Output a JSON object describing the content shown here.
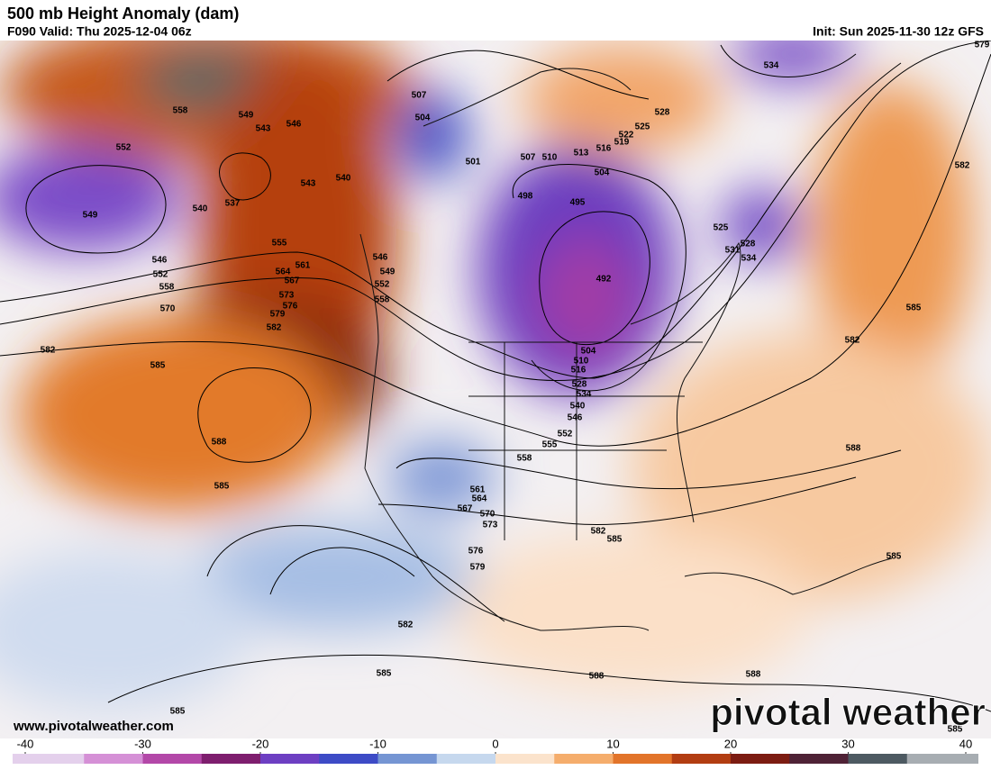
{
  "header": {
    "title": "500 mb Height Anomaly (dam)",
    "valid": "F090 Valid: Thu 2025-12-04 06z",
    "init": "Init: Sun 2025-11-30 12z GFS"
  },
  "map": {
    "contour_labels": [
      "558",
      "549",
      "543",
      "546",
      "552",
      "537",
      "540",
      "540",
      "543",
      "549",
      "546",
      "552",
      "558",
      "555",
      "561",
      "564",
      "567",
      "573",
      "576",
      "579",
      "582",
      "570",
      "582",
      "585",
      "588",
      "585",
      "546",
      "549",
      "552",
      "558",
      "507",
      "504",
      "501",
      "507",
      "510",
      "513",
      "516",
      "519",
      "522",
      "525",
      "528",
      "504",
      "498",
      "495",
      "492",
      "525",
      "531",
      "528",
      "534",
      "534",
      "579",
      "582",
      "585",
      "582",
      "504",
      "510",
      "516",
      "528",
      "534",
      "540",
      "546",
      "552",
      "555",
      "558",
      "561",
      "564",
      "567",
      "570",
      "573",
      "576",
      "579",
      "582",
      "585",
      "588",
      "582",
      "585",
      "588",
      "588",
      "585",
      "585",
      "585"
    ]
  },
  "colorbar": {
    "range": [
      -40,
      40
    ],
    "ticks": [
      -40,
      -30,
      -20,
      -10,
      0,
      10,
      20,
      30,
      40
    ],
    "colors": [
      "#e4d0ec",
      "#d590d6",
      "#b348a8",
      "#7e1e6e",
      "#6d3fc2",
      "#3d4bc6",
      "#7595d3",
      "#c6d8ee",
      "#fbe3cc",
      "#f5ad6c",
      "#e2742a",
      "#b23d12",
      "#7c1c12",
      "#4f2236",
      "#4d5a62",
      "#a7adb2"
    ]
  },
  "footer": {
    "website": "www.pivotalweather.com",
    "logo": "pivotal weather"
  }
}
